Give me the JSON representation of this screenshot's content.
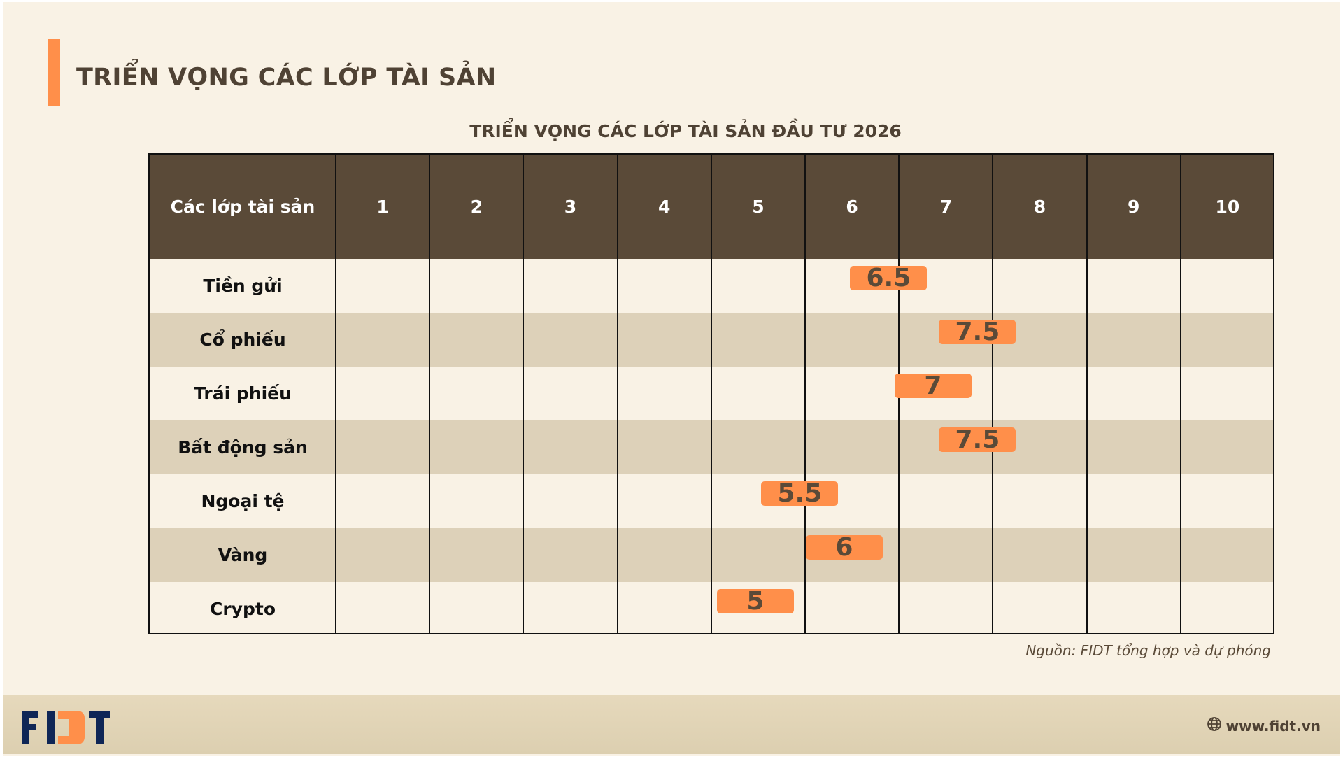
{
  "page": {
    "title": "TRIỂN VỌNG CÁC LỚP TÀI SẢN",
    "source": "Nguồn: FIDT tổng hợp và dự phóng",
    "website": "www.fidt.vn",
    "website_icon": "globe-icon",
    "logo_text": "FIDT"
  },
  "colors": {
    "header": "#5a4a38",
    "badge": "#ff8f4a",
    "accent": "#ff8f4a",
    "alt_row": "#ddd1b9",
    "logo_navy": "#0f2656"
  },
  "chart_data": {
    "type": "table",
    "title": "TRIỂN VỌNG CÁC LỚP TÀI SẢN ĐẦU TƯ 2026",
    "header_label": "Các lớp tài sản",
    "scale": [
      "1",
      "2",
      "3",
      "4",
      "5",
      "6",
      "7",
      "8",
      "9",
      "10"
    ],
    "xlim": [
      1,
      10
    ],
    "categories": [
      "Tiền gửi",
      "Cổ phiếu",
      "Trái phiếu",
      "Bất động sản",
      "Ngoại tệ",
      "Vàng",
      "Crypto"
    ],
    "values": [
      6.5,
      7.5,
      7,
      7.5,
      5.5,
      6,
      5
    ],
    "value_labels": [
      "6.5",
      "7.5",
      "7",
      "7.5",
      "5.5",
      "6",
      "5"
    ]
  }
}
